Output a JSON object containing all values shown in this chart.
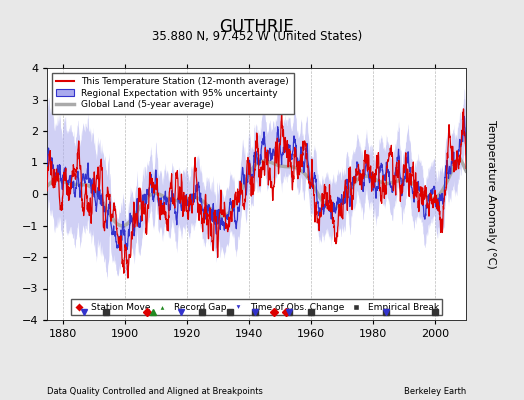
{
  "title": "GUTHRIE",
  "subtitle": "35.880 N, 97.452 W (United States)",
  "xlabel_left": "Data Quality Controlled and Aligned at Breakpoints",
  "xlabel_right": "Berkeley Earth",
  "ylabel": "Temperature Anomaly (°C)",
  "xlim": [
    1875,
    2010
  ],
  "ylim": [
    -4,
    4
  ],
  "yticks": [
    -4,
    -3,
    -2,
    -1,
    0,
    1,
    2,
    3,
    4
  ],
  "xticks": [
    1880,
    1900,
    1920,
    1940,
    1960,
    1980,
    2000
  ],
  "bg_color": "#e8e8e8",
  "plot_bg_color": "#ffffff",
  "legend_items": [
    {
      "label": "This Temperature Station (12-month average)",
      "color": "#dd0000",
      "lw": 1.2
    },
    {
      "label": "Regional Expectation with 95% uncertainty",
      "color": "#3333cc",
      "lw": 1.2
    },
    {
      "label": "Global Land (5-year average)",
      "color": "#aaaaaa",
      "lw": 3
    }
  ],
  "marker_legend": [
    {
      "marker": "D",
      "color": "#dd0000",
      "label": "Station Move"
    },
    {
      "marker": "^",
      "color": "#228822",
      "label": "Record Gap"
    },
    {
      "marker": "v",
      "color": "#3333cc",
      "label": "Time of Obs. Change"
    },
    {
      "marker": "s",
      "color": "#333333",
      "label": "Empirical Break"
    }
  ],
  "station_moves": [
    1907,
    1948,
    1952
  ],
  "record_gaps": [
    1909
  ],
  "obs_changes": [
    1887,
    1918,
    1942,
    1953,
    1984
  ],
  "empirical_breaks": [
    1894,
    1925,
    1934,
    1942,
    1953,
    1960,
    1984,
    2000
  ]
}
